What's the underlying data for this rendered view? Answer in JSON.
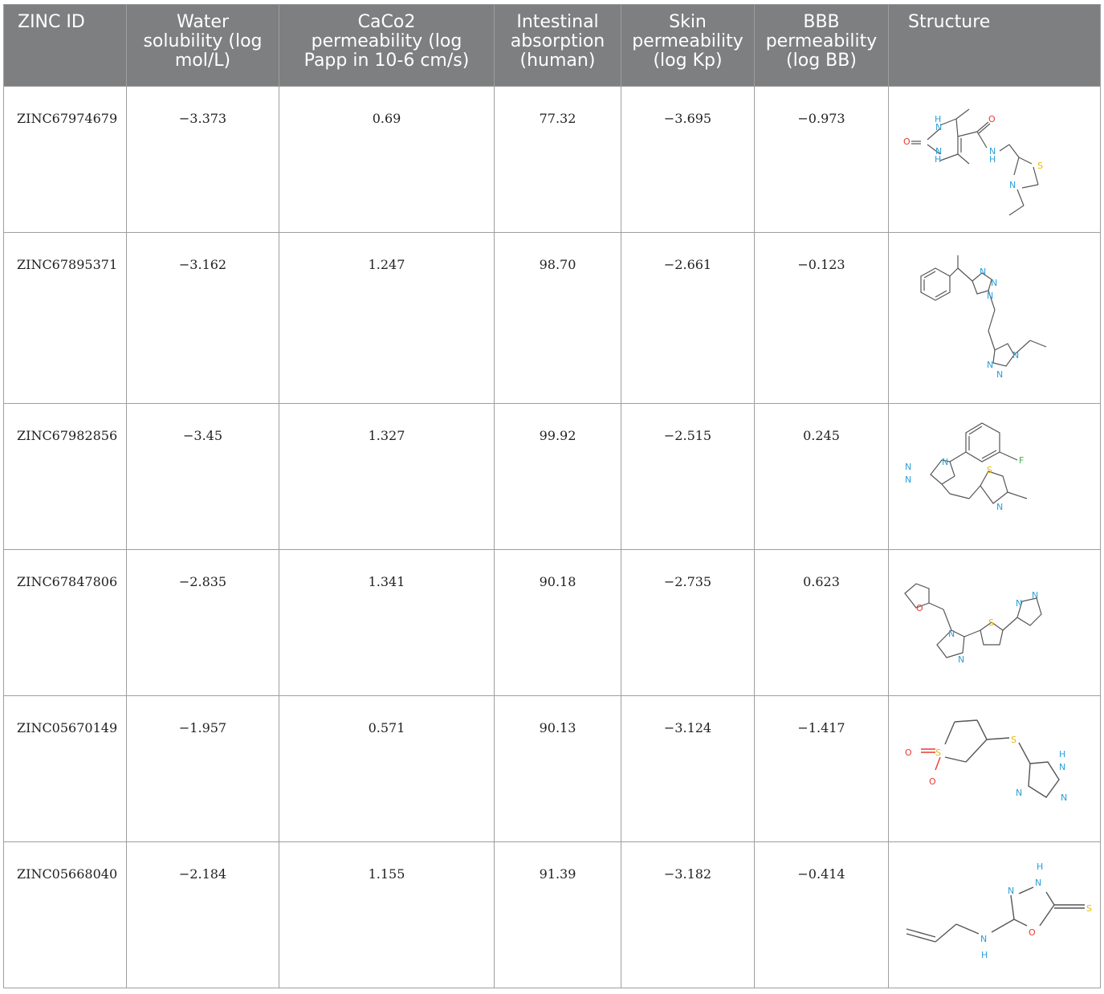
{
  "headers": {
    "zinc_id": "ZINC ID",
    "water": [
      "Water",
      "solubility (log",
      "mol/L)"
    ],
    "caco2": [
      "CaCo2",
      "permeability (log",
      "Papp in 10-6 cm/s)"
    ],
    "intestinal": [
      "Intestinal",
      "absorption",
      "(human)"
    ],
    "skin": [
      "Skin",
      "permeability",
      "(log Kp)"
    ],
    "bbb": [
      "BBB",
      "permeability",
      "(log BB)"
    ],
    "structure": "Structure"
  },
  "rows": [
    {
      "id": "ZINC67974679",
      "water": "−3.373",
      "caco2": "0.69",
      "intestinal": "77.32",
      "skin": "−3.695",
      "bbb": "−0.973",
      "structure_icon": "molecule-zinc67974679"
    },
    {
      "id": "ZINC67895371",
      "water": "−3.162",
      "caco2": "1.247",
      "intestinal": "98.70",
      "skin": "−2.661",
      "bbb": "−0.123",
      "structure_icon": "molecule-zinc67895371"
    },
    {
      "id": "ZINC67982856",
      "water": "−3.45",
      "caco2": "1.327",
      "intestinal": "99.92",
      "skin": "−2.515",
      "bbb": "0.245",
      "structure_icon": "molecule-zinc67982856"
    },
    {
      "id": "ZINC67847806",
      "water": "−2.835",
      "caco2": "1.341",
      "intestinal": "90.18",
      "skin": "−2.735",
      "bbb": "0.623",
      "structure_icon": "molecule-zinc67847806"
    },
    {
      "id": "ZINC05670149",
      "water": "−1.957",
      "caco2": "0.571",
      "intestinal": "90.13",
      "skin": "−3.124",
      "bbb": "−1.417",
      "structure_icon": "molecule-zinc05670149"
    },
    {
      "id": "ZINC05668040",
      "water": "−2.184",
      "caco2": "1.155",
      "intestinal": "91.39",
      "skin": "−3.182",
      "bbb": "−0.414",
      "structure_icon": "molecule-zinc05668040"
    }
  ],
  "atom_labels": {
    "h": "H",
    "n": "N",
    "o": "O",
    "s": "S",
    "f": "F"
  },
  "colors": {
    "header_bg": "#7d7f80",
    "header_text": "#ffffff",
    "border": "#9e9e9e",
    "nitrogen": "#2a9fd8",
    "oxygen": "#e8392f",
    "sulfur": "#e5b800",
    "fluorine": "#3cb04a",
    "bond": "#555555"
  }
}
